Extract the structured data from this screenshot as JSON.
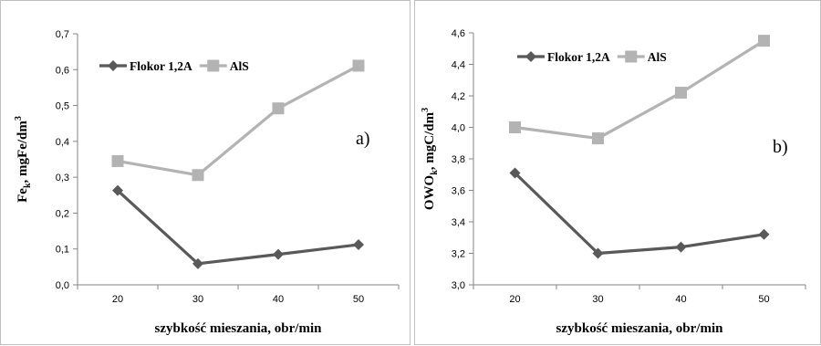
{
  "chart_data": [
    {
      "type": "line",
      "panel_label": "a)",
      "categories": [
        "20",
        "30",
        "40",
        "50"
      ],
      "series": [
        {
          "name": "Flokor 1,2A",
          "values": [
            0.263,
            0.059,
            0.085,
            0.112
          ],
          "color": "#595959",
          "marker": "diamond"
        },
        {
          "name": "AlS",
          "values": [
            0.345,
            0.306,
            0.492,
            0.611
          ],
          "color": "#b3b3b3",
          "marker": "square"
        }
      ],
      "xlabel": "szybkość mieszania, obr/min",
      "ylabel": "Fe",
      "ylabel_sub": "k",
      "ylabel_rest": ", mgFe/dm",
      "ylabel_sup": "3",
      "ylim": [
        0.0,
        0.7
      ],
      "yticks": [
        "0,0",
        "0,1",
        "0,2",
        "0,3",
        "0,4",
        "0,5",
        "0,6",
        "0,7"
      ],
      "grid": false,
      "legend": "top-left"
    },
    {
      "type": "line",
      "panel_label": "b)",
      "categories": [
        "20",
        "30",
        "40",
        "50"
      ],
      "series": [
        {
          "name": "Flokor 1,2A",
          "values": [
            3.71,
            3.2,
            3.24,
            3.32
          ],
          "color": "#595959",
          "marker": "diamond"
        },
        {
          "name": "AlS",
          "values": [
            4.0,
            3.93,
            4.22,
            4.55
          ],
          "color": "#b3b3b3",
          "marker": "square"
        }
      ],
      "xlabel": "szybkość mieszania, obr/min",
      "ylabel": "OWO",
      "ylabel_sub": "k",
      "ylabel_rest": ", mgC/dm",
      "ylabel_sup": "3",
      "ylim": [
        3.0,
        4.6
      ],
      "yticks": [
        "3,0",
        "3,2",
        "3,4",
        "3,6",
        "3,8",
        "4,0",
        "4,2",
        "4,4",
        "4,6"
      ],
      "grid": false,
      "legend": "top-left"
    }
  ]
}
